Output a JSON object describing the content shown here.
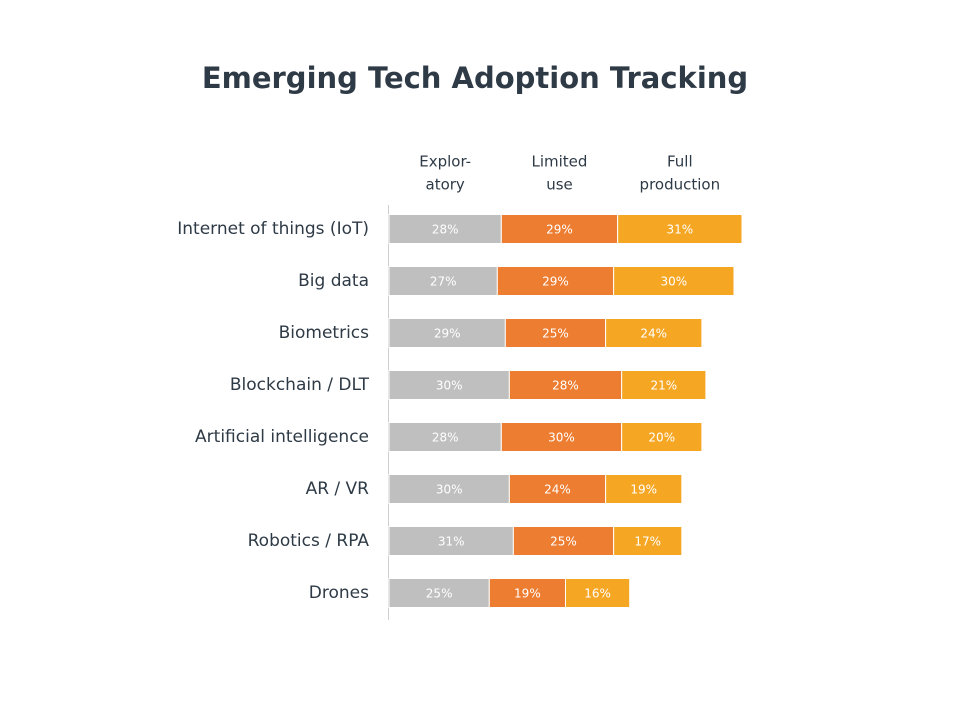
{
  "chart_data": {
    "type": "stacked-bar",
    "orientation": "horizontal",
    "title": "Emerging Tech Adoption Tracking",
    "categories": [
      "Internet of things (IoT)",
      "Big data",
      "Biometrics",
      "Blockchain / DLT",
      "Artificial intelligence",
      "AR / VR",
      "Robotics / RPA",
      "Drones"
    ],
    "series": [
      {
        "name": "Explor-\natory",
        "color": "#bfbfbf",
        "values": [
          28,
          27,
          29,
          30,
          28,
          30,
          31,
          25
        ],
        "value_labels": [
          "28%",
          "27%",
          "29%",
          "30%",
          "28%",
          "30%",
          "31%",
          "25%"
        ]
      },
      {
        "name": "Limited\nuse",
        "color": "#ed7d31",
        "values": [
          29,
          29,
          25,
          28,
          30,
          24,
          25,
          19
        ],
        "value_labels": [
          "29%",
          "29%",
          "25%",
          "28%",
          "30%",
          "24%",
          "25%",
          "19%"
        ]
      },
      {
        "name": "Full\nproduction",
        "color": "#f5a623",
        "values": [
          31,
          30,
          24,
          21,
          20,
          19,
          17,
          16
        ],
        "value_labels": [
          "31%",
          "30%",
          "24%",
          "21%",
          "20%",
          "19%",
          "17%",
          "16%"
        ]
      }
    ]
  }
}
